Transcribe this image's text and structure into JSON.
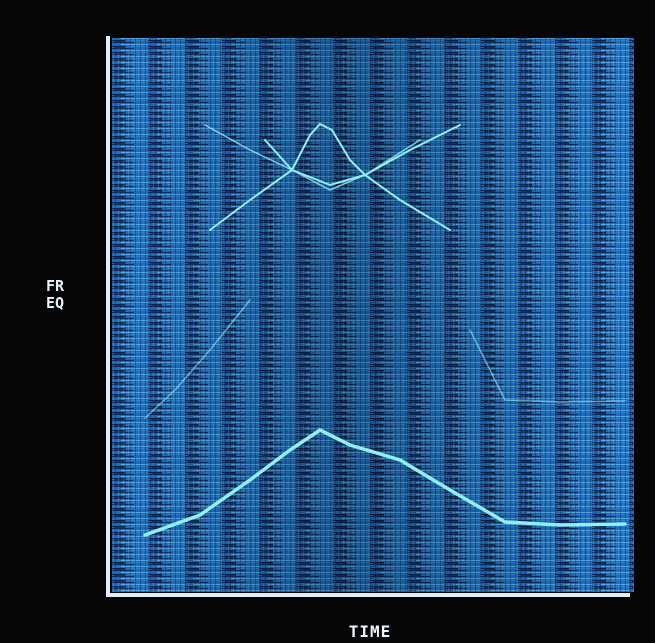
{
  "axes": {
    "y_label": "FREQ",
    "x_label": "TIME"
  }
}
